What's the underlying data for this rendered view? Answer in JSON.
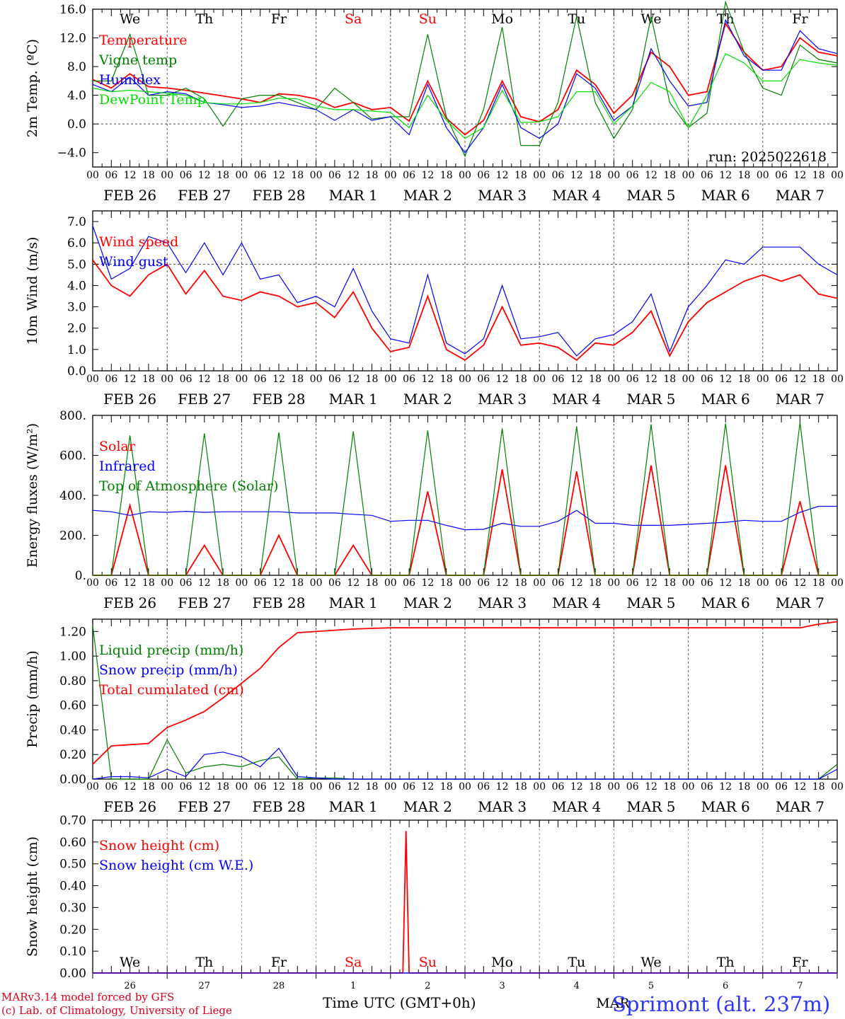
{
  "chart_data": [
    {
      "type": "line",
      "ylabel": "2m Temp. (ºC)",
      "ylim": [
        -6.0,
        16.0
      ],
      "yticks": [
        -4.0,
        0.0,
        4.0,
        8.0,
        12.0,
        16.0
      ],
      "ytick_labels": [
        "−4.0",
        "0.0",
        "4.0",
        "8.0",
        "12.0",
        "16.0"
      ],
      "ref_line": 0.0,
      "x_hours": [
        0,
        6,
        12,
        18,
        24,
        30,
        36,
        42,
        48,
        54,
        60,
        66,
        72,
        78,
        84,
        90,
        96,
        102,
        108,
        114,
        120,
        126,
        132,
        138,
        144,
        150,
        156,
        162,
        168,
        174,
        180,
        186,
        192,
        198,
        204,
        210,
        216,
        222,
        228,
        234,
        240
      ],
      "day_labels": [
        "We",
        "Th",
        "Fr",
        "Sa",
        "Su",
        "Mo",
        "Tu",
        "We",
        "Th",
        "Fr"
      ],
      "weekend_days": [
        "Sa",
        "Su"
      ],
      "date_labels": [
        "FEB 26",
        "FEB 27",
        "FEB 28",
        "MAR  1",
        "MAR  2",
        "MAR  3",
        "MAR  4",
        "MAR  5",
        "MAR  6",
        "MAR  7"
      ],
      "hour_tick_labels": [
        "00",
        "06",
        "12",
        "18"
      ],
      "annotation": "run: 2025022618",
      "series": [
        {
          "name": "Temperature",
          "color": "#ff0000",
          "values": [
            6.2,
            5.0,
            7.0,
            5.2,
            5.0,
            4.7,
            4.3,
            3.9,
            3.5,
            3.0,
            4.2,
            4.0,
            3.5,
            2.3,
            3.0,
            2.0,
            2.3,
            0.4,
            6.0,
            0.8,
            -1.5,
            0.5,
            6.0,
            1.0,
            0.3,
            2.0,
            7.5,
            5.5,
            1.5,
            4.0,
            10.0,
            8.0,
            4.0,
            4.5,
            14.0,
            10.0,
            7.5,
            8.0,
            12.0,
            10.0,
            9.5
          ]
        },
        {
          "name": "Vigne temp",
          "color": "#008000",
          "values": [
            6.0,
            6.0,
            12.5,
            4.0,
            4.0,
            5.0,
            3.5,
            -0.3,
            3.5,
            4.0,
            4.0,
            3.0,
            2.0,
            5.0,
            3.0,
            0.7,
            1.0,
            1.0,
            12.5,
            1.0,
            -4.5,
            2.0,
            13.5,
            -3.0,
            -3.0,
            3.0,
            15.0,
            3.0,
            -2.0,
            2.0,
            15.0,
            3.0,
            -0.5,
            1.5,
            17.0,
            10.0,
            5.0,
            4.0,
            11.0,
            9.0,
            8.5
          ]
        },
        {
          "name": "Humidex",
          "color": "#0000ff",
          "values": [
            5.5,
            4.5,
            6.5,
            4.0,
            4.5,
            4.2,
            3.0,
            2.7,
            2.3,
            2.5,
            3.0,
            2.5,
            2.0,
            0.5,
            2.0,
            0.5,
            1.0,
            -1.5,
            5.5,
            -0.5,
            -4.0,
            -0.5,
            5.5,
            -0.5,
            -2.0,
            0.0,
            7.0,
            5.0,
            0.5,
            2.5,
            10.5,
            6.0,
            2.5,
            3.0,
            14.5,
            9.5,
            7.5,
            7.5,
            13.0,
            10.5,
            9.8
          ]
        },
        {
          "name": "DewPoint Temp",
          "color": "#00e000",
          "values": [
            5.0,
            4.5,
            4.7,
            4.5,
            4.3,
            4.0,
            3.0,
            2.8,
            2.8,
            3.0,
            3.6,
            3.5,
            2.5,
            2.0,
            2.0,
            1.8,
            1.6,
            -0.5,
            4.0,
            0.5,
            -2.0,
            -0.5,
            4.7,
            0.2,
            0.3,
            1.0,
            4.5,
            4.5,
            0.0,
            2.5,
            5.8,
            4.5,
            -0.5,
            4.0,
            9.8,
            8.5,
            6.0,
            6.0,
            9.0,
            8.5,
            8.2
          ]
        }
      ]
    },
    {
      "type": "line",
      "ylabel": "10m Wind (m/s)",
      "ylim": [
        0.0,
        7.5
      ],
      "yticks": [
        0.0,
        1.0,
        2.0,
        3.0,
        4.0,
        5.0,
        6.0,
        7.0
      ],
      "ytick_labels": [
        "0.0",
        "1.0",
        "2.0",
        "3.0",
        "4.0",
        "5.0",
        "6.0",
        "7.0"
      ],
      "ref_line": 5.0,
      "x_hours": [
        0,
        6,
        12,
        18,
        24,
        30,
        36,
        42,
        48,
        54,
        60,
        66,
        72,
        78,
        84,
        90,
        96,
        102,
        108,
        114,
        120,
        126,
        132,
        138,
        144,
        150,
        156,
        162,
        168,
        174,
        180,
        186,
        192,
        198,
        204,
        210,
        216,
        222,
        228,
        234,
        240
      ],
      "date_labels": [
        "FEB 26",
        "FEB 27",
        "FEB 28",
        "MAR  1",
        "MAR  2",
        "MAR  3",
        "MAR  4",
        "MAR  5",
        "MAR  6",
        "MAR  7"
      ],
      "hour_tick_labels": [
        "00",
        "06",
        "12",
        "18"
      ],
      "series": [
        {
          "name": "Wind speed",
          "color": "#ff0000",
          "values": [
            5.2,
            4.0,
            3.5,
            4.5,
            5.0,
            3.6,
            4.7,
            3.5,
            3.3,
            3.7,
            3.5,
            3.0,
            3.2,
            2.5,
            3.7,
            2.0,
            0.9,
            1.1,
            3.5,
            1.0,
            0.5,
            1.2,
            3.0,
            1.2,
            1.3,
            1.1,
            0.5,
            1.3,
            1.2,
            1.8,
            2.8,
            0.7,
            2.3,
            3.2,
            3.7,
            4.2,
            4.5,
            4.2,
            4.5,
            3.6,
            3.4
          ]
        },
        {
          "name": "Wind gust",
          "color": "#0000ff",
          "values": [
            6.8,
            4.3,
            4.8,
            6.3,
            6.0,
            4.6,
            6.0,
            4.5,
            6.0,
            4.3,
            4.5,
            3.2,
            3.5,
            3.0,
            4.8,
            2.8,
            1.5,
            1.3,
            4.5,
            1.3,
            0.8,
            1.5,
            4.0,
            1.5,
            1.6,
            1.8,
            0.7,
            1.5,
            1.7,
            2.3,
            3.6,
            0.9,
            3.0,
            4.0,
            5.2,
            5.0,
            5.8,
            5.8,
            5.8,
            5.0,
            4.5
          ]
        }
      ]
    },
    {
      "type": "line",
      "ylabel": "Energy fluxes (W/m²)",
      "ylim": [
        0.0,
        800.0
      ],
      "yticks": [
        0.0,
        200.0,
        400.0,
        600.0,
        800.0
      ],
      "ytick_labels": [
        "0.",
        "200.",
        "400.",
        "600.",
        "800."
      ],
      "x_hours": [
        0,
        6,
        12,
        18,
        24,
        30,
        36,
        42,
        48,
        54,
        60,
        66,
        72,
        78,
        84,
        90,
        96,
        102,
        108,
        114,
        120,
        126,
        132,
        138,
        144,
        150,
        156,
        162,
        168,
        174,
        180,
        186,
        192,
        198,
        204,
        210,
        216,
        222,
        228,
        234,
        240
      ],
      "date_labels": [
        "FEB 26",
        "FEB 27",
        "FEB 28",
        "MAR  1",
        "MAR  2",
        "MAR  3",
        "MAR  4",
        "MAR  5",
        "MAR  6",
        "MAR  7"
      ],
      "hour_tick_labels": [
        "00",
        "06",
        "12",
        "18"
      ],
      "series": [
        {
          "name": "Solar",
          "color": "#ff0000",
          "values": [
            0,
            0,
            350,
            0,
            0,
            0,
            150,
            0,
            0,
            0,
            200,
            0,
            0,
            0,
            150,
            0,
            0,
            0,
            420,
            0,
            0,
            0,
            530,
            0,
            0,
            0,
            520,
            0,
            0,
            0,
            550,
            0,
            0,
            0,
            550,
            0,
            0,
            0,
            370,
            0,
            0
          ]
        },
        {
          "name": "Infrared",
          "color": "#0000ff",
          "values": [
            325,
            318,
            300,
            318,
            315,
            320,
            315,
            318,
            318,
            318,
            318,
            312,
            312,
            312,
            305,
            300,
            270,
            275,
            275,
            250,
            228,
            230,
            260,
            245,
            245,
            270,
            325,
            260,
            260,
            250,
            250,
            250,
            255,
            260,
            265,
            275,
            270,
            270,
            315,
            345,
            345
          ]
        },
        {
          "name": "Top of Atmosphere (Solar)",
          "color": "#008000",
          "values": [
            0,
            0,
            700,
            0,
            0,
            0,
            710,
            0,
            0,
            0,
            715,
            0,
            0,
            0,
            720,
            0,
            0,
            0,
            725,
            0,
            0,
            0,
            735,
            0,
            0,
            0,
            745,
            0,
            0,
            0,
            755,
            0,
            0,
            0,
            760,
            0,
            0,
            0,
            765,
            0,
            0
          ]
        }
      ]
    },
    {
      "type": "line",
      "ylabel": "Precip (mm/h)",
      "ylim": [
        0.0,
        1.3
      ],
      "yticks": [
        0.0,
        0.2,
        0.4,
        0.6,
        0.8,
        1.0,
        1.2
      ],
      "ytick_labels": [
        "0.00",
        "0.20",
        "0.40",
        "0.60",
        "0.80",
        "1.00",
        "1.20"
      ],
      "x_hours": [
        0,
        6,
        12,
        18,
        24,
        30,
        36,
        42,
        48,
        54,
        60,
        66,
        72,
        78,
        84,
        90,
        96,
        102,
        108,
        114,
        120,
        126,
        132,
        138,
        144,
        150,
        156,
        162,
        168,
        174,
        180,
        186,
        192,
        198,
        204,
        210,
        216,
        222,
        228,
        234,
        240
      ],
      "date_labels": [
        "FEB 26",
        "FEB 27",
        "FEB 28",
        "MAR  1",
        "MAR  2",
        "MAR  3",
        "MAR  4",
        "MAR  5",
        "MAR  6",
        "MAR  7"
      ],
      "hour_tick_labels": [
        "00",
        "06",
        "12",
        "18"
      ],
      "series": [
        {
          "name": "Liquid precip (mm/h)",
          "color": "#008000",
          "values": [
            1.25,
            0.0,
            0.0,
            0.0,
            0.32,
            0.05,
            0.1,
            0.12,
            0.1,
            0.15,
            0.18,
            0.0,
            0.01,
            0.01,
            0.0,
            0.0,
            0.0,
            0.0,
            0.0,
            0.0,
            0.0,
            0.0,
            0.0,
            0.0,
            0.0,
            0.0,
            0.0,
            0.0,
            0.0,
            0.0,
            0.0,
            0.0,
            0.0,
            0.0,
            0.0,
            0.0,
            0.0,
            0.0,
            0.0,
            0.0,
            0.12
          ]
        },
        {
          "name": "Snow precip (mm/h)",
          "color": "#0000ff",
          "values": [
            0.0,
            0.02,
            0.02,
            0.01,
            0.08,
            0.02,
            0.2,
            0.22,
            0.18,
            0.1,
            0.25,
            0.02,
            0.01,
            0.0,
            0.0,
            0.0,
            0.0,
            0.0,
            0.0,
            0.0,
            0.0,
            0.0,
            0.0,
            0.0,
            0.0,
            0.0,
            0.0,
            0.0,
            0.0,
            0.0,
            0.0,
            0.0,
            0.0,
            0.0,
            0.0,
            0.0,
            0.0,
            0.0,
            0.0,
            0.0,
            0.08
          ]
        },
        {
          "name": "Total cumulated (cm)",
          "color": "#ff0000",
          "values": [
            0.12,
            0.27,
            0.28,
            0.29,
            0.42,
            0.48,
            0.55,
            0.66,
            0.78,
            0.9,
            1.07,
            1.19,
            1.2,
            1.21,
            1.22,
            1.225,
            1.23,
            1.23,
            1.23,
            1.23,
            1.23,
            1.23,
            1.23,
            1.23,
            1.23,
            1.23,
            1.23,
            1.23,
            1.23,
            1.23,
            1.23,
            1.23,
            1.23,
            1.23,
            1.23,
            1.23,
            1.23,
            1.23,
            1.23,
            1.26,
            1.28
          ]
        }
      ]
    },
    {
      "type": "line",
      "ylabel": "Snow height (cm)",
      "ylim": [
        0.0,
        0.7
      ],
      "yticks": [
        0.0,
        0.1,
        0.2,
        0.3,
        0.4,
        0.5,
        0.6,
        0.7
      ],
      "ytick_labels": [
        "0.00",
        "0.10",
        "0.20",
        "0.30",
        "0.40",
        "0.50",
        "0.60",
        "0.70"
      ],
      "x_hours": [
        0,
        24,
        48,
        72,
        96,
        100,
        101,
        102,
        103,
        104,
        120,
        144,
        168,
        192,
        216,
        240
      ],
      "day_labels": [
        "We",
        "Th",
        "Fr",
        "Sa",
        "Su",
        "Mo",
        "Tu",
        "We",
        "Th",
        "Fr"
      ],
      "weekend_days": [
        "Sa",
        "Su"
      ],
      "day_numbers": [
        "26",
        "27",
        "28",
        "1",
        "2",
        "3",
        "4",
        "5",
        "6",
        "7"
      ],
      "month_label": "MAR",
      "series": [
        {
          "name": "Snow height (cm)",
          "color": "#ff0000",
          "values": [
            0,
            0,
            0,
            0,
            0,
            0,
            0.65,
            0.0,
            0,
            0,
            0,
            0,
            0,
            0,
            0,
            0
          ]
        },
        {
          "name": "Snow height (cm W.E.)",
          "color": "#0000ff",
          "values": [
            0,
            0,
            0,
            0,
            0,
            0,
            0,
            0,
            0,
            0,
            0,
            0,
            0,
            0,
            0,
            0
          ]
        }
      ]
    }
  ],
  "footer": {
    "credit_line1": "MARv3.14 model forced by GFS",
    "credit_line2": "(c) Lab. of Climatology, University of Liege",
    "time_axis_label": "Time UTC (GMT+0h)",
    "site_label": "Sprimont (alt. 237m)"
  }
}
